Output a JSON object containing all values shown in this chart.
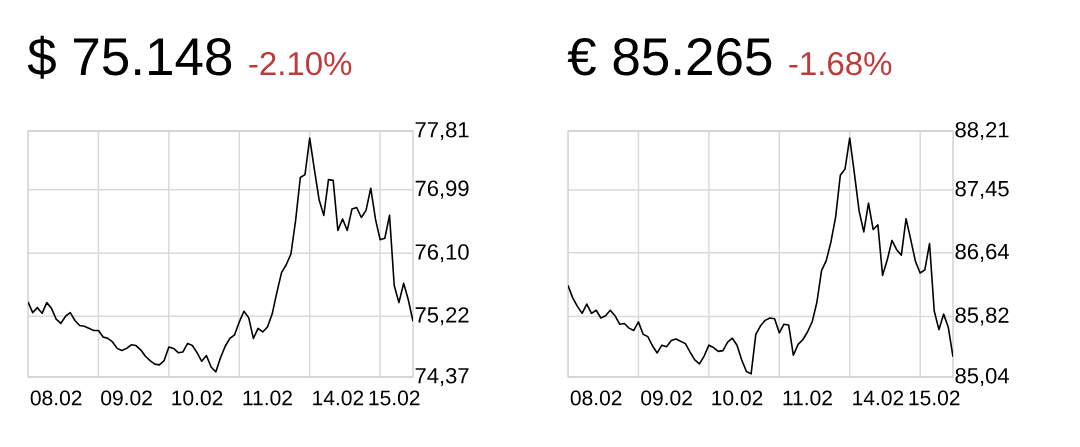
{
  "chart_data": [
    {
      "type": "line",
      "title": "$ 75.148",
      "subtitle": "-2.10%",
      "grid": true,
      "ylim": [
        74.37,
        77.81
      ],
      "yticks": [
        {
          "value": 74.37,
          "label": "74,37"
        },
        {
          "value": 75.22,
          "label": "75,22"
        },
        {
          "value": 76.1,
          "label": "76,10"
        },
        {
          "value": 76.99,
          "label": "76,99"
        },
        {
          "value": 77.81,
          "label": "77,81"
        }
      ],
      "categories": [
        null,
        null,
        null,
        null,
        null,
        null,
        "08.02",
        null,
        null,
        null,
        null,
        null,
        null,
        null,
        null,
        null,
        null,
        null,
        null,
        null,
        null,
        "09.02",
        null,
        null,
        null,
        null,
        null,
        null,
        null,
        null,
        null,
        null,
        null,
        null,
        null,
        null,
        "10.02",
        null,
        null,
        null,
        null,
        null,
        null,
        null,
        null,
        null,
        null,
        null,
        null,
        null,
        null,
        "11.02",
        null,
        null,
        null,
        null,
        null,
        null,
        null,
        null,
        null,
        null,
        null,
        null,
        null,
        null,
        "14.02",
        null,
        null,
        null,
        null,
        null,
        null,
        null,
        null,
        null,
        null,
        null,
        "15.02",
        null,
        null,
        null,
        null
      ],
      "series": [
        {
          "color": "#000000",
          "values": [
            75.42,
            75.27,
            75.34,
            75.26,
            75.41,
            75.33,
            75.18,
            75.12,
            75.22,
            75.27,
            75.16,
            75.09,
            75.08,
            75.05,
            75.02,
            75.02,
            74.93,
            74.91,
            74.86,
            74.77,
            74.74,
            74.77,
            74.82,
            74.81,
            74.75,
            74.66,
            74.6,
            74.55,
            74.54,
            74.6,
            74.79,
            74.77,
            74.71,
            74.72,
            74.84,
            74.81,
            74.71,
            74.59,
            74.67,
            74.51,
            74.44,
            74.64,
            74.8,
            74.91,
            74.96,
            75.14,
            75.29,
            75.2,
            74.91,
            75.05,
            75.0,
            75.07,
            75.25,
            75.55,
            75.83,
            75.94,
            76.09,
            76.56,
            77.16,
            77.2,
            77.71,
            77.27,
            76.85,
            76.63,
            77.13,
            77.12,
            76.42,
            76.58,
            76.42,
            76.72,
            76.74,
            76.6,
            76.7,
            77.01,
            76.58,
            76.29,
            76.31,
            76.63,
            75.65,
            75.41,
            75.68,
            75.45,
            75.15
          ]
        }
      ]
    },
    {
      "type": "line",
      "title": "€ 85.265",
      "subtitle": "-1.68%",
      "grid": true,
      "ylim": [
        85.04,
        88.21
      ],
      "yticks": [
        {
          "value": 85.04,
          "label": "85,04"
        },
        {
          "value": 85.82,
          "label": "85,82"
        },
        {
          "value": 86.64,
          "label": "86,64"
        },
        {
          "value": 87.45,
          "label": "87,45"
        },
        {
          "value": 88.21,
          "label": "88,21"
        }
      ],
      "categories": [
        null,
        null,
        null,
        null,
        null,
        null,
        "08.02",
        null,
        null,
        null,
        null,
        null,
        null,
        null,
        null,
        null,
        null,
        null,
        null,
        null,
        null,
        "09.02",
        null,
        null,
        null,
        null,
        null,
        null,
        null,
        null,
        null,
        null,
        null,
        null,
        null,
        null,
        "10.02",
        null,
        null,
        null,
        null,
        null,
        null,
        null,
        null,
        null,
        null,
        null,
        null,
        null,
        null,
        "11.02",
        null,
        null,
        null,
        null,
        null,
        null,
        null,
        null,
        null,
        null,
        null,
        null,
        null,
        null,
        "14.02",
        null,
        null,
        null,
        null,
        null,
        null,
        null,
        null,
        null,
        null,
        null,
        "15.02",
        null,
        null,
        null,
        null
      ],
      "series": [
        {
          "color": "#000000",
          "values": [
            86.22,
            86.06,
            85.95,
            85.86,
            85.98,
            85.86,
            85.9,
            85.8,
            85.83,
            85.9,
            85.83,
            85.72,
            85.73,
            85.67,
            85.64,
            85.75,
            85.59,
            85.56,
            85.44,
            85.35,
            85.45,
            85.43,
            85.51,
            85.53,
            85.5,
            85.47,
            85.36,
            85.26,
            85.21,
            85.31,
            85.45,
            85.42,
            85.37,
            85.38,
            85.49,
            85.54,
            85.45,
            85.26,
            85.11,
            85.08,
            85.59,
            85.7,
            85.77,
            85.8,
            85.79,
            85.61,
            85.72,
            85.71,
            85.32,
            85.46,
            85.52,
            85.62,
            85.75,
            86.0,
            86.41,
            86.54,
            86.78,
            87.1,
            87.64,
            87.72,
            88.12,
            87.66,
            87.18,
            86.91,
            87.28,
            86.94,
            87.0,
            86.35,
            86.55,
            86.8,
            86.68,
            86.61,
            87.08,
            86.81,
            86.53,
            86.38,
            86.42,
            86.76,
            85.89,
            85.65,
            85.85,
            85.68,
            85.3
          ]
        }
      ]
    }
  ]
}
